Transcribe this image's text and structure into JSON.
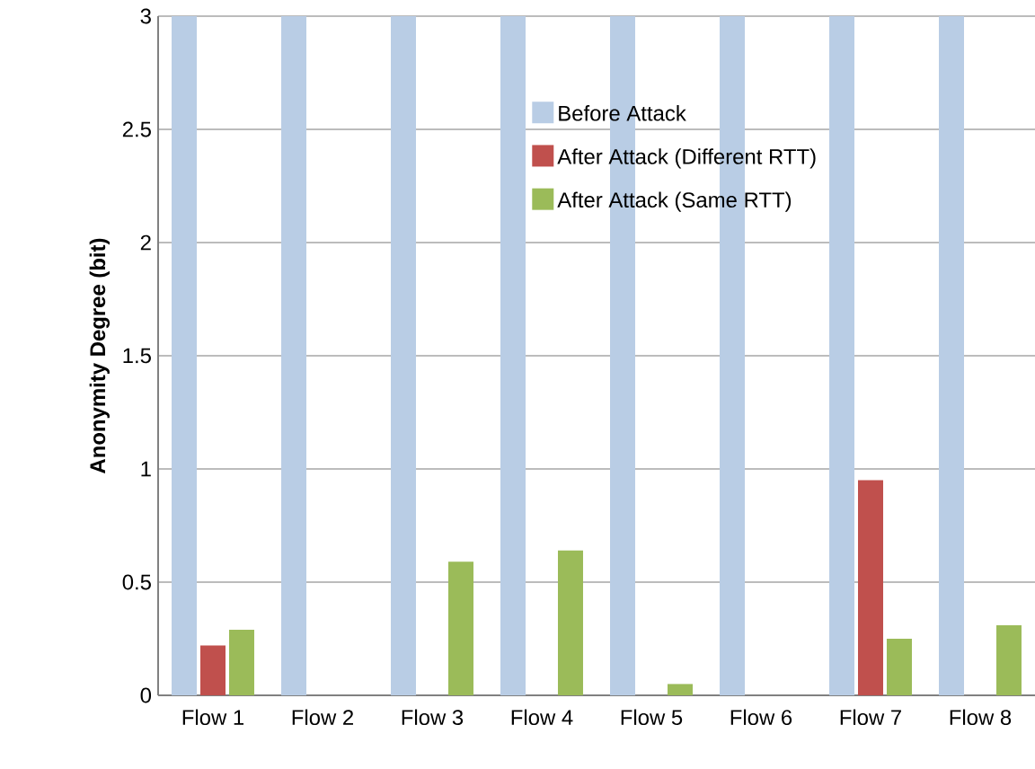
{
  "chart_data": {
    "type": "bar",
    "ylabel": "Anonymity Degree (bit)",
    "categories": [
      "Flow 1",
      "Flow 2",
      "Flow 3",
      "Flow 4",
      "Flow 5",
      "Flow 6",
      "Flow 7",
      "Flow 8"
    ],
    "series": [
      {
        "name": "Before Attack",
        "color": "#b9cde5",
        "values": [
          3,
          3,
          3,
          3,
          3,
          3,
          3,
          3
        ]
      },
      {
        "name": "After Attack (Different RTT)",
        "color": "#c0504d",
        "values": [
          0.22,
          0,
          0,
          0,
          0,
          0,
          0.95,
          0
        ]
      },
      {
        "name": "After Attack (Same RTT)",
        "color": "#9bbb59",
        "values": [
          0.29,
          0,
          0.59,
          0.64,
          0.05,
          0,
          0.25,
          0.31
        ]
      }
    ],
    "ylim": [
      0,
      3
    ],
    "yticks": [
      0,
      0.5,
      1,
      1.5,
      2,
      2.5,
      3
    ],
    "grid": "y",
    "legend": "top right"
  }
}
